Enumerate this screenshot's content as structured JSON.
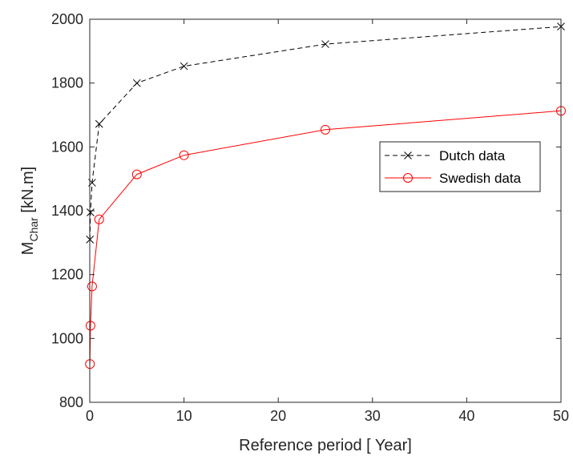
{
  "chart_data": {
    "type": "line",
    "xlabel": "Reference period [ Year]",
    "ylabel_main": "M",
    "ylabel_sub": "Char",
    "ylabel_unit": " [kN.m]",
    "xlim": [
      0,
      50
    ],
    "ylim": [
      800,
      2000
    ],
    "xticks": [
      0,
      10,
      20,
      30,
      40,
      50
    ],
    "yticks": [
      800,
      1000,
      1200,
      1400,
      1600,
      1800,
      2000
    ],
    "xtick_labels": [
      "0",
      "10",
      "20",
      "30",
      "40",
      "50"
    ],
    "ytick_labels": [
      "800",
      "1000",
      "1200",
      "1400",
      "1600",
      "1800",
      "2000"
    ],
    "grid": false,
    "legend_position": "right",
    "series": [
      {
        "name": "Dutch data",
        "color": "#000000",
        "line_style": "dashed",
        "marker": "x",
        "x": [
          0.02,
          0.08,
          0.25,
          1,
          5,
          10,
          25,
          50
        ],
        "y": [
          1310,
          1395,
          1488,
          1672,
          1800,
          1853,
          1922,
          1977
        ]
      },
      {
        "name": "Swedish data",
        "color": "#ff0000",
        "line_style": "solid",
        "marker": "o",
        "x": [
          0.02,
          0.08,
          0.25,
          1,
          5,
          10,
          25,
          50
        ],
        "y": [
          920,
          1040,
          1163,
          1373,
          1514,
          1574,
          1654,
          1713
        ]
      }
    ]
  }
}
